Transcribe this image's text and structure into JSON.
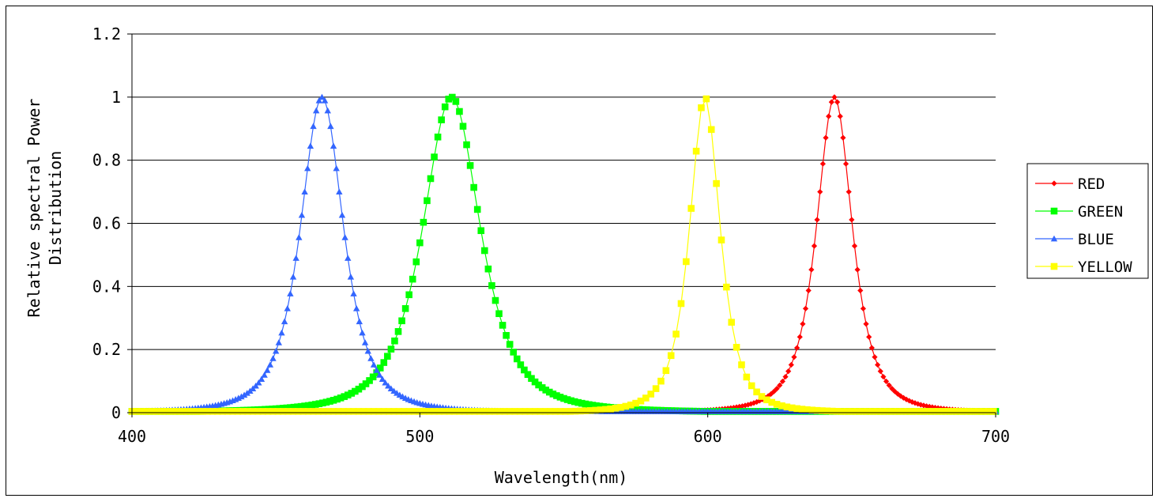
{
  "chart_data": {
    "type": "line",
    "title": "",
    "xlabel": "Wavelength(nm)",
    "ylabel": "Relative spectral Power Distribution",
    "ylabel_lines": [
      "Relative spectral Power",
      "Distribution"
    ],
    "xlim": [
      400,
      700
    ],
    "ylim": [
      0,
      1.2
    ],
    "x_ticks": [
      400,
      500,
      600,
      700
    ],
    "x_tick_labels": [
      "400",
      "500",
      "600",
      "700"
    ],
    "y_ticks": [
      0,
      0.2,
      0.4,
      0.6,
      0.8,
      1,
      1.2
    ],
    "y_tick_labels": [
      "0",
      "0.2",
      "0.4",
      "0.6",
      "0.8",
      "1",
      "1.2"
    ],
    "grid": "horizontal",
    "legend_position": "right",
    "series": [
      {
        "name": "RED",
        "color": "#ff0000",
        "marker": "diamond",
        "peak_nm": 644,
        "fwhm_nm": 20,
        "x_start": 560,
        "x_end": 700
      },
      {
        "name": "GREEN",
        "color": "#00ff00",
        "marker": "square",
        "peak_nm": 511,
        "fwhm_nm": 32,
        "x_start": 400,
        "x_end": 700
      },
      {
        "name": "BLUE",
        "color": "#3366ff",
        "marker": "triangle",
        "peak_nm": 466,
        "fwhm_nm": 24,
        "x_start": 400,
        "x_end": 700
      },
      {
        "name": "YELLOW",
        "color": "#ffff00",
        "marker": "square",
        "peak_nm": 599,
        "fwhm_nm": 17,
        "x_start": 400,
        "x_end": 700
      }
    ]
  }
}
